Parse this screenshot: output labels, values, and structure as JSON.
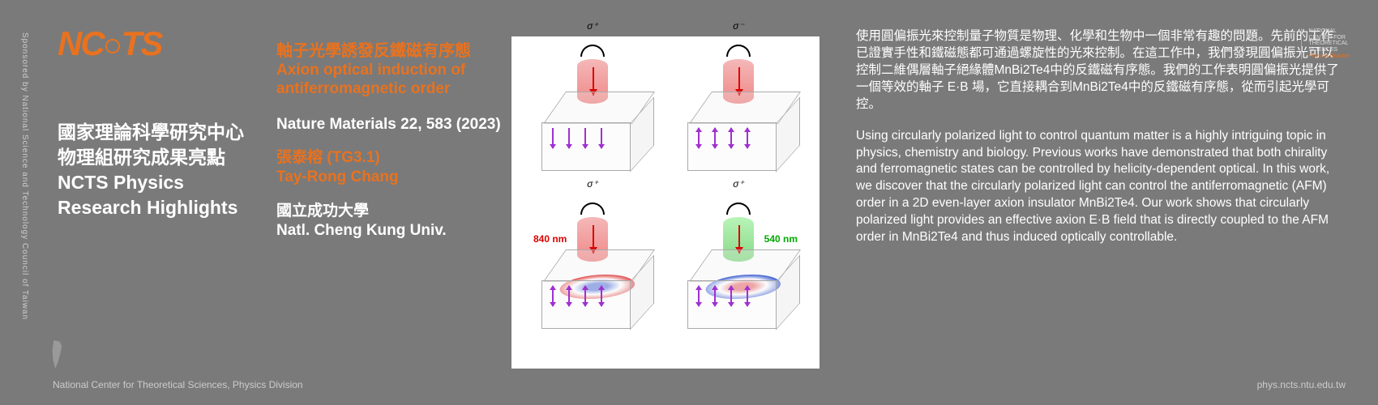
{
  "sponsor_text": "Sponsored by National Science and Technology Council of Taiwan",
  "logo_text": "NCTS",
  "heading_zh_1": "國家理論科學研究中心",
  "heading_zh_2": "物理組研究成果亮點",
  "heading_en_1": "NCTS Physics",
  "heading_en_2": "Research Highlights",
  "title_zh": "軸子光學誘發反鐵磁有序態",
  "title_en": "Axion optical induction of antiferromagnetic order",
  "citation": "Nature Materials 22, 583 (2023)",
  "author_zh": "張泰榕 (TG3.1)",
  "author_en": "Tay-Rong Chang",
  "affil_zh": "國立成功大學",
  "affil_en": "Natl. Cheng Kung Univ.",
  "abstract_zh": "使用圓偏振光來控制量子物質是物理、化學和生物中一個非常有趣的問題。先前的工作已證實手性和鐵磁態都可通過螺旋性的光來控制。在這工作中，我們發現圓偏振光可以控制二維偶層軸子絕緣體MnBi2Te4中的反鐵磁有序態。我們的工作表明圓偏振光提供了一個等效的軸子 E·B 場，它直接耦合到MnBi2Te4中的反鐵磁有序態，從而引起光學可控。",
  "abstract_en": "Using circularly polarized light to control quantum matter is a highly intriguing topic in physics, chemistry and biology. Previous works have demonstrated that both chirality and ferromagnetic states can be controlled by helicity-dependent optical. In this work, we discover that the circularly polarized light can control the antiferromagnetic (AFM) order in a 2D even-layer axion insulator MnBi2Te4. Our work shows that circularly polarized light provides an effective axion E·B field that is directly coupled to the AFM order in MnBi2Te4 and thus induced optically controllable.",
  "figure": {
    "sigma_plus": "σ⁺",
    "sigma_minus": "σ⁻",
    "wl_840": "840 nm",
    "wl_540": "540 nm",
    "colors": {
      "cyl_red": "#f08888",
      "cyl_green": "#88d888",
      "arrow_red": "#d00000",
      "arrow_purple": "#a030d0",
      "ring_blue": "#4060d0",
      "ring_red": "#e05050"
    }
  },
  "corner_logo": {
    "line1": "NATIONAL",
    "line2": "CENTER FOR",
    "line3": "THEORETICAL",
    "line4": "SCIENCES",
    "line5": "Physics Division"
  },
  "footer_left": "National Center for Theoretical Sciences, Physics Division",
  "footer_right": "phys.ncts.ntu.edu.tw"
}
